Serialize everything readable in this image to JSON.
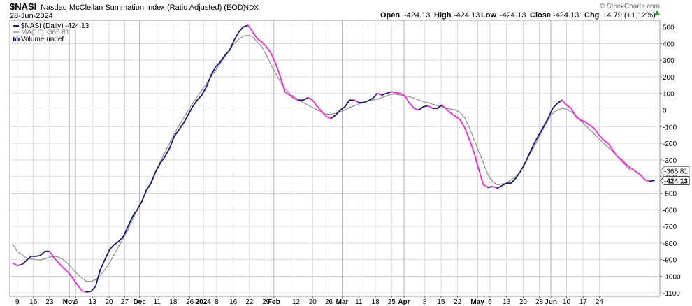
{
  "header": {
    "symbol": "$NASI",
    "name": "Nasdaq McClellan Summation Index (Ratio Adjusted) (EOD)",
    "exchange": "INDX",
    "date": "28-Jun-2024",
    "credit": "© StockCharts.com",
    "open_label": "Open",
    "open": "-424.13",
    "high_label": "High",
    "high": "-424.13",
    "low_label": "Low",
    "low": "-424.13",
    "close_label": "Close",
    "close": "-424.13",
    "chg_label": "Chg",
    "chg": "+4.79 (+1.12%)"
  },
  "legend": {
    "main": "$NASI (Daily) -424.13",
    "ma": "MA(10) -365.81",
    "volume": "Volume undef"
  },
  "colors": {
    "up": "#1a1a7a",
    "down": "#ff22dd",
    "ma": "#909090",
    "grid": "#d8d8d8",
    "month_grid": "#b4b4b4"
  },
  "chart_data": {
    "type": "line",
    "y_axis_side": "right",
    "ylim": [
      -1120,
      540
    ],
    "y_ticks": [
      500,
      400,
      300,
      200,
      100,
      0,
      -100,
      -200,
      -300,
      -400,
      -500,
      -600,
      -700,
      -800,
      -900,
      -1000,
      -1100
    ],
    "x_tick_labels": [
      {
        "i": 1,
        "label": "9",
        "month": false
      },
      {
        "i": 4.5,
        "label": "16",
        "month": false
      },
      {
        "i": 8,
        "label": "23",
        "month": false
      },
      {
        "i": 12.3,
        "label": "Nov",
        "month": true
      },
      {
        "i": 13.7,
        "label": "6",
        "month": false
      },
      {
        "i": 17.3,
        "label": "13",
        "month": false
      },
      {
        "i": 20.9,
        "label": "20",
        "month": false
      },
      {
        "i": 24.3,
        "label": "27",
        "month": false
      },
      {
        "i": 27.5,
        "label": "Dec",
        "month": true
      },
      {
        "i": 31.3,
        "label": "11",
        "month": false
      },
      {
        "i": 34.8,
        "label": "18",
        "month": false
      },
      {
        "i": 38.4,
        "label": "26",
        "month": false
      },
      {
        "i": 41.3,
        "label": "2024",
        "month": true
      },
      {
        "i": 44.2,
        "label": "8",
        "month": false
      },
      {
        "i": 47.8,
        "label": "16",
        "month": false
      },
      {
        "i": 51.3,
        "label": "22",
        "month": false
      },
      {
        "i": 54.9,
        "label": "29",
        "month": false
      },
      {
        "i": 56.6,
        "label": "Feb",
        "month": true
      },
      {
        "i": 61.4,
        "label": "12",
        "month": false
      },
      {
        "i": 65.0,
        "label": "20",
        "month": false
      },
      {
        "i": 68.5,
        "label": "26",
        "month": false
      },
      {
        "i": 71.4,
        "label": "Mar",
        "month": true
      },
      {
        "i": 75.0,
        "label": "11",
        "month": false
      },
      {
        "i": 78.6,
        "label": "18",
        "month": false
      },
      {
        "i": 82.1,
        "label": "25",
        "month": false
      },
      {
        "i": 84.8,
        "label": "Apr",
        "month": true
      },
      {
        "i": 89.3,
        "label": "8",
        "month": false
      },
      {
        "i": 92.8,
        "label": "15",
        "month": false
      },
      {
        "i": 96.4,
        "label": "22",
        "month": false
      },
      {
        "i": 100.7,
        "label": "May",
        "month": true
      },
      {
        "i": 103.4,
        "label": "6",
        "month": false
      },
      {
        "i": 107.0,
        "label": "13",
        "month": false
      },
      {
        "i": 110.6,
        "label": "20",
        "month": false
      },
      {
        "i": 114.1,
        "label": "28",
        "month": false
      },
      {
        "i": 116.6,
        "label": "Jun",
        "month": true
      },
      {
        "i": 120.0,
        "label": "10",
        "month": false
      },
      {
        "i": 123.6,
        "label": "17",
        "month": false
      },
      {
        "i": 127.1,
        "label": "24",
        "month": false
      }
    ],
    "series": [
      {
        "name": "$NASI (Daily)",
        "values": [
          -920,
          -935,
          -930,
          -905,
          -880,
          -880,
          -875,
          -850,
          -850,
          -890,
          -920,
          -950,
          -975,
          -1010,
          -1050,
          -1085,
          -1095,
          -1090,
          -1060,
          -960,
          -900,
          -840,
          -810,
          -790,
          -760,
          -700,
          -640,
          -600,
          -550,
          -480,
          -440,
          -370,
          -320,
          -280,
          -230,
          -160,
          -120,
          -80,
          -30,
          20,
          60,
          90,
          140,
          210,
          260,
          290,
          330,
          360,
          420,
          470,
          500,
          510,
          470,
          430,
          410,
          380,
          340,
          280,
          200,
          110,
          90,
          70,
          60,
          60,
          75,
          60,
          20,
          -10,
          -40,
          -50,
          -30,
          0,
          20,
          60,
          60,
          45,
          45,
          55,
          70,
          100,
          90,
          100,
          110,
          105,
          100,
          85,
          40,
          10,
          0,
          20,
          25,
          10,
          10,
          30,
          5,
          -20,
          -40,
          -60,
          -110,
          -180,
          -260,
          -360,
          -450,
          -465,
          -460,
          -470,
          -455,
          -440,
          -440,
          -410,
          -370,
          -320,
          -260,
          -200,
          -150,
          -100,
          -50,
          10,
          40,
          60,
          30,
          10,
          -40,
          -60,
          -70,
          -90,
          -110,
          -150,
          -180,
          -200,
          -240,
          -280,
          -300,
          -330,
          -350,
          -370,
          -390,
          -420,
          -428,
          -424
        ],
        "color_key": "up/down"
      },
      {
        "name": "MA(10)",
        "values": [
          -805,
          -850,
          -870,
          -890,
          -895,
          -900,
          -902,
          -895,
          -885,
          -880,
          -885,
          -900,
          -925,
          -955,
          -985,
          -1010,
          -1030,
          -1030,
          -1020,
          -995,
          -960,
          -920,
          -870,
          -820,
          -770,
          -720,
          -660,
          -600,
          -545,
          -490,
          -430,
          -370,
          -310,
          -255,
          -200,
          -145,
          -95,
          -50,
          -5,
          40,
          80,
          120,
          160,
          200,
          240,
          280,
          320,
          360,
          400,
          425,
          445,
          450,
          440,
          410,
          380,
          330,
          270,
          220,
          170,
          130,
          100,
          80,
          60,
          45,
          30,
          15,
          0,
          -15,
          -25,
          -25,
          -20,
          -10,
          0,
          15,
          25,
          35,
          45,
          55,
          60,
          65,
          75,
          85,
          95,
          95,
          90,
          85,
          80,
          70,
          60,
          50,
          45,
          35,
          25,
          20,
          10,
          5,
          0,
          -15,
          -50,
          -110,
          -180,
          -250,
          -320,
          -390,
          -430,
          -450,
          -445,
          -440,
          -420,
          -400,
          -370,
          -320,
          -270,
          -220,
          -165,
          -110,
          -60,
          -20,
          0,
          10,
          5,
          -10,
          -30,
          -60,
          -90,
          -115,
          -145,
          -170,
          -200,
          -225,
          -250,
          -280,
          -310,
          -340,
          -365.81
        ],
        "color_key": "ma"
      }
    ],
    "last_value_tags": [
      {
        "label": "-365.81",
        "value": -365.81,
        "series": "MA(10)"
      },
      {
        "label": "-424.13",
        "value": -424.13,
        "series": "$NASI (Daily)"
      }
    ]
  }
}
